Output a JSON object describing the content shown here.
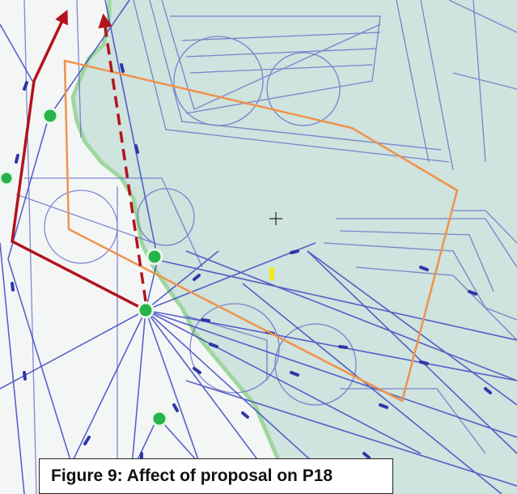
{
  "caption": "Figure 9: Affect of proposal on P18",
  "colors": {
    "sea": "#cfe3df",
    "land": "#f4f6f6",
    "coast": "#9fd79f",
    "airspace": "#5b63c4",
    "route": "#3e48c0",
    "proposal_boundary": "#f0924a",
    "current_route": "#b3131c",
    "waypoint_fill": "#27b34a",
    "marker": "#f2ea1a"
  },
  "legend_items": []
}
